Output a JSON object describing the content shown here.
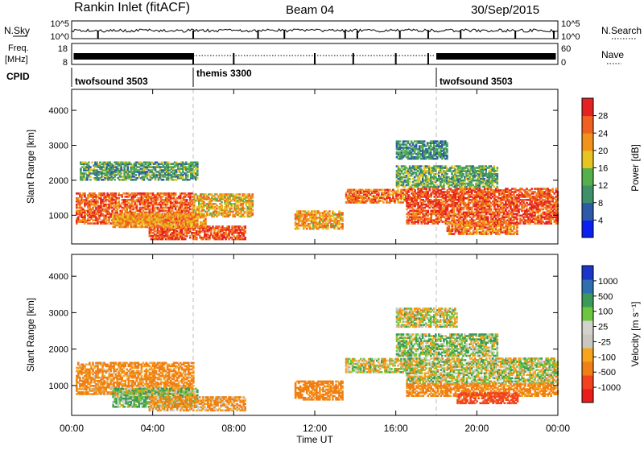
{
  "header": {
    "station": "Rankin Inlet (fitACF)",
    "beam": "Beam 04",
    "date": "30/Sep/2015"
  },
  "status_panels": {
    "nsky_label": "N.Sky",
    "nsky_tick_top": "10^5",
    "nsky_tick_bottom": "10^0",
    "nsearch_label": "N.Search",
    "nsearch_tick_top": "10^5",
    "nsearch_tick_bottom": "10^0",
    "freq_label": "Freq.",
    "freq_unit": "[MHz]",
    "freq_tick_top": "18",
    "freq_tick_bottom": "8",
    "nave_label": "Nave",
    "nave_tick_top": "60",
    "nave_tick_bottom": "0",
    "cpid_label": "CPID"
  },
  "cpid_segments": [
    {
      "label": "twofsound 3503",
      "start_hour": 0
    },
    {
      "label": "themis 3300",
      "start_hour": 6
    },
    {
      "label": "twofsound 3503",
      "start_hour": 18
    }
  ],
  "colors": {
    "power_scale": [
      "#0a1ff0",
      "#2c5aa8",
      "#3f8f6a",
      "#55b04c",
      "#e6c422",
      "#f2921a",
      "#f0601e",
      "#e52222"
    ],
    "velocity_scale": [
      "#ea1d1d",
      "#f2421f",
      "#f07f16",
      "#f5a41c",
      "#c8c8c0",
      "#d2d2cc",
      "#6dc63f",
      "#3b9a5a",
      "#2f6fb0",
      "#1b36c9"
    ]
  },
  "chart_data": [
    {
      "type": "heatmap",
      "parameter": "power",
      "ylabel": "Slant Range [km]",
      "xlabel": "Time UT",
      "x_ticks": [
        "00:00",
        "04:00",
        "08:00",
        "12:00",
        "16:00",
        "20:00",
        "00:00"
      ],
      "x_range_hours": [
        0,
        24
      ],
      "y_ticks": [
        1000,
        2000,
        3000,
        4000
      ],
      "ylim": [
        180,
        4600
      ],
      "colorbar_label": "Power [dB]",
      "colorbar_ticks": [
        "4",
        "8",
        "12",
        "16",
        "20",
        "24",
        "28"
      ],
      "colorbar_range": [
        0,
        32
      ],
      "mode_boundaries_hours": [
        6,
        18
      ],
      "regions": [
        {
          "t": [
            0.2,
            6.0
          ],
          "r": [
            750,
            1650
          ],
          "level": 26
        },
        {
          "t": [
            6.0,
            8.9
          ],
          "r": [
            950,
            1600
          ],
          "level": 20
        },
        {
          "t": [
            3.8,
            8.6
          ],
          "r": [
            300,
            700
          ],
          "level": 27
        },
        {
          "t": [
            2.0,
            6.6
          ],
          "r": [
            650,
            1050
          ],
          "level": 22
        },
        {
          "t": [
            0.4,
            6.2
          ],
          "r": [
            2000,
            2500
          ],
          "level": 12
        },
        {
          "t": [
            11.0,
            13.4
          ],
          "r": [
            600,
            1100
          ],
          "level": 21
        },
        {
          "t": [
            13.5,
            16.5
          ],
          "r": [
            1350,
            1750
          ],
          "level": 25
        },
        {
          "t": [
            16.5,
            24.0
          ],
          "r": [
            750,
            1750
          ],
          "level": 27
        },
        {
          "t": [
            18.5,
            22.0
          ],
          "r": [
            450,
            800
          ],
          "level": 24
        },
        {
          "t": [
            16.0,
            18.5
          ],
          "r": [
            2600,
            3100
          ],
          "level": 10
        },
        {
          "t": [
            16.0,
            21.0
          ],
          "r": [
            1800,
            2400
          ],
          "level": 13
        }
      ]
    },
    {
      "type": "heatmap",
      "parameter": "velocity",
      "ylabel": "Slant Range [km]",
      "xlabel": "Time UT",
      "x_ticks": [
        "00:00",
        "04:00",
        "08:00",
        "12:00",
        "16:00",
        "20:00",
        "00:00"
      ],
      "x_range_hours": [
        0,
        24
      ],
      "y_ticks": [
        1000,
        2000,
        3000,
        4000
      ],
      "ylim": [
        180,
        4600
      ],
      "colorbar_label": "Velocity [m s⁻¹]",
      "colorbar_ticks": [
        "-1000",
        "-500",
        "-100",
        "-25",
        "25",
        "100",
        "500",
        "1000"
      ],
      "colorbar_range": [
        -1200,
        1200
      ],
      "mode_boundaries_hours": [
        6,
        18
      ],
      "regions": [
        {
          "t": [
            0.2,
            6.0
          ],
          "r": [
            750,
            1650
          ],
          "level": -150
        },
        {
          "t": [
            2.0,
            6.2
          ],
          "r": [
            400,
            900
          ],
          "level": 80
        },
        {
          "t": [
            3.8,
            8.6
          ],
          "r": [
            300,
            700
          ],
          "level": -120
        },
        {
          "t": [
            11.0,
            13.4
          ],
          "r": [
            600,
            1100
          ],
          "level": -200
        },
        {
          "t": [
            13.5,
            16.5
          ],
          "r": [
            1350,
            1750
          ],
          "level": 5
        },
        {
          "t": [
            16.5,
            24.0
          ],
          "r": [
            1050,
            1750
          ],
          "level": 10
        },
        {
          "t": [
            16.5,
            24.0
          ],
          "r": [
            700,
            1050
          ],
          "level": -180
        },
        {
          "t": [
            19.0,
            22.0
          ],
          "r": [
            500,
            800
          ],
          "level": -600
        },
        {
          "t": [
            16.0,
            19.0
          ],
          "r": [
            2600,
            3100
          ],
          "level": 0
        },
        {
          "t": [
            16.0,
            21.0
          ],
          "r": [
            1800,
            2400
          ],
          "level": 60
        }
      ]
    }
  ]
}
